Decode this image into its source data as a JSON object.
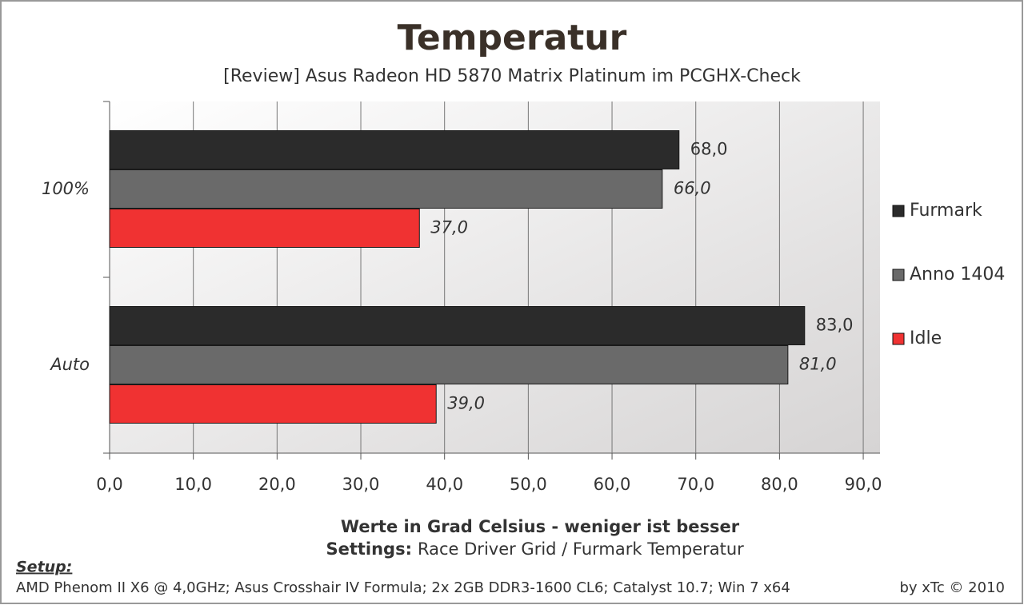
{
  "chart_data": {
    "type": "hbar",
    "title": "Temperatur",
    "subtitle": "[Review] Asus Radeon HD 5870 Matrix Platinum im PCGHX-Check",
    "x_label": "Werte in Grad Celsius - weniger ist besser",
    "settings_label": "Settings:",
    "settings_text": "Race Driver Grid / Furmark Temperatur",
    "setup_label": "Setup:",
    "setup_text": "AMD Phenom II X6 @ 4,0GHz; Asus Crosshair IV Formula; 2x 2GB DDR3-1600 CL6; Catalyst 10.7; Win 7 x64",
    "credit": "by xTc © 2010",
    "categories": [
      "100%",
      "Auto"
    ],
    "series": [
      {
        "name": "Furmark",
        "color": "#2b2b2b",
        "values": [
          68,
          83
        ],
        "value_labels": [
          "68,0",
          "83,0"
        ]
      },
      {
        "name": "Anno 1404",
        "color": "#6a6a6a",
        "values": [
          66,
          81
        ],
        "value_labels": [
          "66,0",
          "81,0"
        ]
      },
      {
        "name": "Idle",
        "color": "#f03232",
        "values": [
          37,
          39
        ],
        "value_labels": [
          "37,0",
          "39,0"
        ]
      }
    ],
    "xlim": [
      0,
      92
    ],
    "xticks": [
      {
        "value": 0,
        "label": "0,0"
      },
      {
        "value": 10,
        "label": "10,0"
      },
      {
        "value": 20,
        "label": "20,0"
      },
      {
        "value": 30,
        "label": "30,0"
      },
      {
        "value": 40,
        "label": "40,0"
      },
      {
        "value": 50,
        "label": "50,0"
      },
      {
        "value": 60,
        "label": "60,0"
      },
      {
        "value": 70,
        "label": "70,0"
      },
      {
        "value": 80,
        "label": "80,0"
      },
      {
        "value": 90,
        "label": "90,0"
      }
    ],
    "grid": true,
    "legend": "right"
  }
}
